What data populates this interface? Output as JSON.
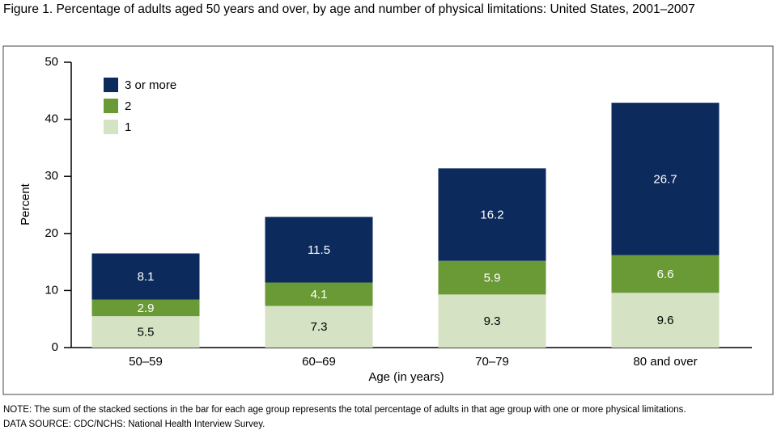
{
  "chart_data": {
    "type": "stacked-bar",
    "title": "Figure 1. Percentage of adults aged 50 years and over, by age and number of physical limitations: United States, 2001–2007",
    "x_label": "Age (in years)",
    "y_label": "Percent",
    "categories": [
      "50–59",
      "60–69",
      "70–79",
      "80 and over"
    ],
    "series": [
      {
        "name": "1",
        "color": "#d5e2c4",
        "label_color": "#000000",
        "values": [
          5.5,
          7.3,
          9.3,
          9.6
        ]
      },
      {
        "name": "2",
        "color": "#6a9a35",
        "label_color": "#ffffff",
        "values": [
          2.9,
          4.1,
          5.9,
          6.6
        ]
      },
      {
        "name": "3 or more",
        "color": "#0c2a5c",
        "label_color": "#ffffff",
        "values": [
          8.1,
          11.5,
          16.2,
          26.7
        ]
      }
    ],
    "ylim": [
      0,
      50
    ],
    "yticks": [
      0,
      10,
      20,
      30,
      40,
      50
    ],
    "legend": "upper left",
    "notes": [
      "NOTE: The sum of the stacked sections in the bar for each age group represents the total percentage of adults in that age group with one or more physical limitations.",
      "DATA SOURCE: CDC/NCHS: National Health Interview Survey."
    ]
  }
}
